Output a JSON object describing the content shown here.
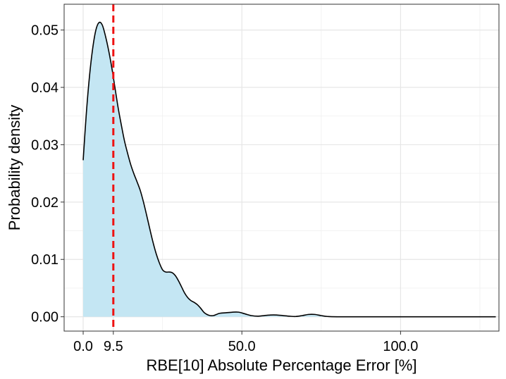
{
  "chart_data": {
    "type": "area",
    "title": "",
    "xlabel": "RBE[10] Absolute Percentage Error [%]",
    "ylabel": "Probability density",
    "xlim": [
      -6,
      131
    ],
    "ylim": [
      -0.0025,
      0.0545
    ],
    "x_ticks": [
      {
        "value": 0,
        "label": "0.0"
      },
      {
        "value": 9.5,
        "label": "9.5"
      },
      {
        "value": 50,
        "label": "50.0"
      },
      {
        "value": 100,
        "label": "100.0"
      }
    ],
    "y_ticks": [
      {
        "value": 0,
        "label": "0.00"
      },
      {
        "value": 0.01,
        "label": "0.01"
      },
      {
        "value": 0.02,
        "label": "0.02"
      },
      {
        "value": 0.03,
        "label": "0.03"
      },
      {
        "value": 0.04,
        "label": "0.04"
      },
      {
        "value": 0.05,
        "label": "0.05"
      }
    ],
    "x_grid_minor": [
      25,
      75,
      125
    ],
    "y_grid_minor": [
      0.005,
      0.015,
      0.025,
      0.035,
      0.045
    ],
    "grid": true,
    "fill_color": "#c4e6f3",
    "line_color": "#000000",
    "reference_line": {
      "x": 9.5,
      "color": "#ee1111",
      "style": "dashed"
    },
    "series": [
      {
        "points": [
          [
            0.0,
            0.0273
          ],
          [
            1.0,
            0.0355
          ],
          [
            2.0,
            0.042
          ],
          [
            3.0,
            0.0468
          ],
          [
            4.0,
            0.05
          ],
          [
            5.0,
            0.0513
          ],
          [
            6.0,
            0.0509
          ],
          [
            7.0,
            0.049
          ],
          [
            8.0,
            0.0465
          ],
          [
            9.0,
            0.0435
          ],
          [
            10.0,
            0.04
          ],
          [
            11.0,
            0.0365
          ],
          [
            12.0,
            0.0335
          ],
          [
            13.0,
            0.0307
          ],
          [
            14.0,
            0.0285
          ],
          [
            15.0,
            0.0265
          ],
          [
            16.0,
            0.0249
          ],
          [
            17.0,
            0.0235
          ],
          [
            18.0,
            0.022
          ],
          [
            19.0,
            0.02
          ],
          [
            20.0,
            0.0177
          ],
          [
            21.0,
            0.0153
          ],
          [
            22.0,
            0.013
          ],
          [
            23.0,
            0.011
          ],
          [
            24.0,
            0.0094
          ],
          [
            25.0,
            0.0082
          ],
          [
            26.0,
            0.0078
          ],
          [
            27.0,
            0.0078
          ],
          [
            28.0,
            0.0077
          ],
          [
            29.0,
            0.0072
          ],
          [
            30.0,
            0.0063
          ],
          [
            31.0,
            0.0052
          ],
          [
            32.0,
            0.0041
          ],
          [
            33.0,
            0.0033
          ],
          [
            34.0,
            0.0028
          ],
          [
            35.0,
            0.0025
          ],
          [
            36.0,
            0.0021
          ],
          [
            37.0,
            0.0015
          ],
          [
            38.0,
            0.0008
          ],
          [
            39.0,
            0.0004
          ],
          [
            40.0,
            0.0002
          ],
          [
            41.0,
            0.0002
          ],
          [
            42.0,
            0.0004
          ],
          [
            43.0,
            0.0006
          ],
          [
            45.0,
            0.0007
          ],
          [
            47.0,
            0.0008
          ],
          [
            49.0,
            0.0008
          ],
          [
            51.0,
            0.0005
          ],
          [
            53.0,
            0.0002
          ],
          [
            55.0,
            0.0001
          ],
          [
            57.0,
            0.0002
          ],
          [
            59.0,
            0.0003
          ],
          [
            61.0,
            0.0003
          ],
          [
            63.0,
            0.0002
          ],
          [
            65.0,
            0.0001
          ],
          [
            67.0,
            5e-05
          ],
          [
            69.0,
            0.0002
          ],
          [
            71.0,
            0.0004
          ],
          [
            73.0,
            0.0004
          ],
          [
            75.0,
            0.0002
          ],
          [
            77.0,
            5e-05
          ],
          [
            80.0,
            0.0
          ],
          [
            90.0,
            0.0
          ],
          [
            100.0,
            0.0
          ],
          [
            110.0,
            0.0
          ],
          [
            120.0,
            0.0
          ],
          [
            130.0,
            0.0
          ]
        ]
      }
    ]
  }
}
